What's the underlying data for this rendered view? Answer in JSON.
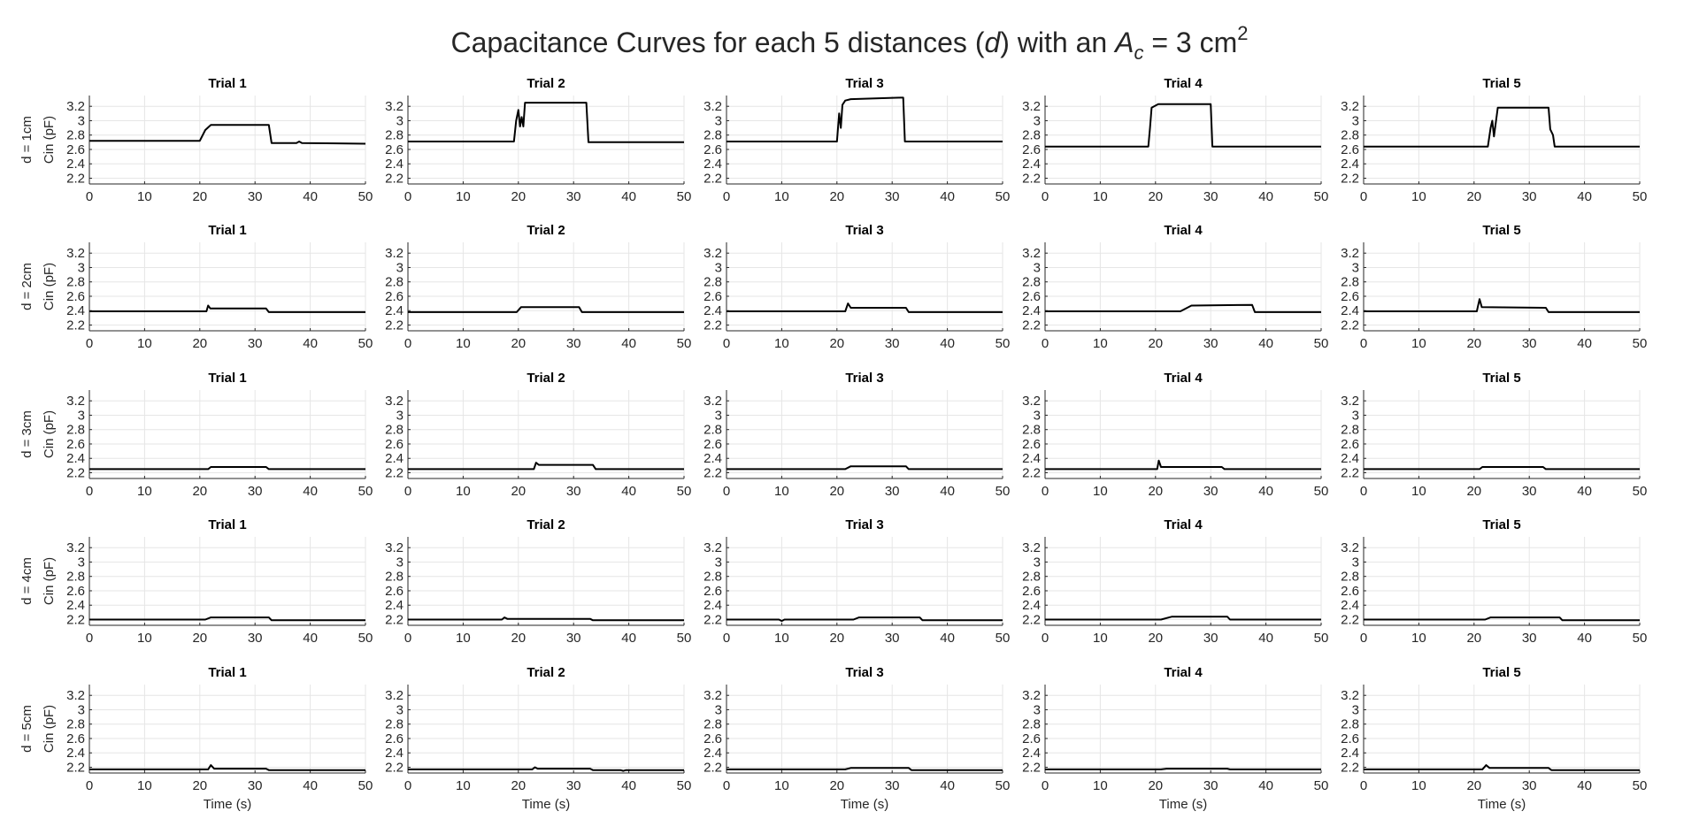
{
  "figure": {
    "title_main": "Capacitance Curves for each 5 distances (",
    "title_d": "d",
    "title_mid": ") with an ",
    "title_A": "A",
    "title_sub": "c",
    "title_eq": " = 3 cm",
    "title_sup": "2"
  },
  "colors": {
    "line": "#000000",
    "grid": "#e6e6e6",
    "axis": "#262626",
    "background": "#ffffff"
  },
  "chart_data": {
    "type": "line",
    "layout": {
      "rows": 5,
      "cols": 5
    },
    "xlim": [
      0,
      50
    ],
    "ylim": [
      2.12,
      3.35
    ],
    "x_ticks": [
      0,
      10,
      20,
      30,
      40,
      50
    ],
    "x_tick_labels": [
      "0",
      "10",
      "20",
      "30",
      "40",
      "50"
    ],
    "y_ticks": [
      2.2,
      2.4,
      2.6,
      2.8,
      3,
      3.2
    ],
    "y_tick_labels": [
      "2.2",
      "2.4",
      "2.6",
      "2.8",
      "3",
      "3.2"
    ],
    "xlabel": "Time (s)",
    "ylabel": "Cin (pF)",
    "grid": true,
    "col_titles": [
      "Trial 1",
      "Trial 2",
      "Trial 3",
      "Trial 4",
      "Trial 5"
    ],
    "row_labels": [
      "d = 1cm",
      "d = 2cm",
      "d = 3cm",
      "d = 4cm",
      "d = 5cm"
    ],
    "series": [
      [
        {
          "x": [
            0,
            20,
            21,
            22,
            32.5,
            33,
            37.5,
            38,
            38.5,
            50
          ],
          "y": [
            2.72,
            2.72,
            2.87,
            2.94,
            2.94,
            2.69,
            2.69,
            2.71,
            2.69,
            2.68
          ]
        },
        {
          "x": [
            0,
            19.2,
            19.6,
            20.0,
            20.3,
            20.6,
            20.9,
            21.2,
            32.3,
            32.7,
            50
          ],
          "y": [
            2.71,
            2.71,
            3.0,
            3.15,
            2.92,
            3.05,
            2.92,
            3.25,
            3.25,
            2.7,
            2.7
          ]
        },
        {
          "x": [
            0,
            20.0,
            20.4,
            20.7,
            21.0,
            21.5,
            22.5,
            31.5,
            32.0,
            32.3,
            50
          ],
          "y": [
            2.71,
            2.71,
            3.1,
            2.9,
            3.22,
            3.28,
            3.3,
            3.32,
            3.32,
            2.71,
            2.71
          ]
        },
        {
          "x": [
            0,
            18.7,
            19.0,
            19.3,
            20.5,
            30.0,
            30.3,
            50
          ],
          "y": [
            2.64,
            2.64,
            2.9,
            3.18,
            3.23,
            3.23,
            2.64,
            2.64
          ]
        },
        {
          "x": [
            0,
            22.5,
            23.0,
            23.3,
            23.6,
            24.3,
            33.5,
            33.8,
            34.3,
            34.6,
            50
          ],
          "y": [
            2.64,
            2.64,
            2.9,
            3.0,
            2.78,
            3.18,
            3.18,
            2.88,
            2.8,
            2.64,
            2.64
          ]
        }
      ],
      [
        {
          "x": [
            0,
            21.2,
            21.5,
            21.9,
            32.0,
            32.5,
            50
          ],
          "y": [
            2.39,
            2.39,
            2.47,
            2.43,
            2.43,
            2.38,
            2.38
          ]
        },
        {
          "x": [
            0,
            19.7,
            20.5,
            31.0,
            31.5,
            50
          ],
          "y": [
            2.38,
            2.38,
            2.45,
            2.45,
            2.38,
            2.38
          ]
        },
        {
          "x": [
            0,
            21.5,
            22.0,
            22.5,
            32.5,
            33.0,
            50
          ],
          "y": [
            2.39,
            2.39,
            2.5,
            2.44,
            2.44,
            2.38,
            2.38
          ]
        },
        {
          "x": [
            0,
            24.5,
            26.5,
            37.5,
            38.0,
            50
          ],
          "y": [
            2.39,
            2.39,
            2.47,
            2.48,
            2.38,
            2.38
          ]
        },
        {
          "x": [
            0,
            20.5,
            21.0,
            21.4,
            33.0,
            33.5,
            50
          ],
          "y": [
            2.39,
            2.39,
            2.56,
            2.45,
            2.44,
            2.38,
            2.38
          ]
        }
      ],
      [
        {
          "x": [
            0,
            21.5,
            22.0,
            32.0,
            32.5,
            50
          ],
          "y": [
            2.25,
            2.25,
            2.28,
            2.28,
            2.25,
            2.25
          ]
        },
        {
          "x": [
            0,
            22.8,
            23.2,
            23.7,
            33.5,
            34.0,
            50
          ],
          "y": [
            2.25,
            2.25,
            2.34,
            2.31,
            2.31,
            2.25,
            2.25
          ]
        },
        {
          "x": [
            0,
            21.5,
            22.5,
            32.5,
            33.0,
            50
          ],
          "y": [
            2.25,
            2.25,
            2.29,
            2.29,
            2.25,
            2.25
          ]
        },
        {
          "x": [
            0,
            20.3,
            20.6,
            21.0,
            32.0,
            32.5,
            50
          ],
          "y": [
            2.25,
            2.25,
            2.37,
            2.28,
            2.28,
            2.25,
            2.25
          ]
        },
        {
          "x": [
            0,
            21.0,
            21.5,
            32.5,
            33.0,
            50
          ],
          "y": [
            2.25,
            2.25,
            2.28,
            2.28,
            2.25,
            2.25
          ]
        }
      ],
      [
        {
          "x": [
            0,
            21.0,
            22.0,
            32.5,
            33.0,
            50
          ],
          "y": [
            2.2,
            2.2,
            2.23,
            2.23,
            2.19,
            2.19
          ]
        },
        {
          "x": [
            0,
            17.0,
            17.5,
            18.0,
            33.0,
            33.5,
            50
          ],
          "y": [
            2.2,
            2.2,
            2.23,
            2.21,
            2.21,
            2.19,
            2.19
          ]
        },
        {
          "x": [
            0,
            9.5,
            10,
            10.5,
            23.0,
            24.0,
            35.0,
            35.5,
            50
          ],
          "y": [
            2.2,
            2.2,
            2.18,
            2.2,
            2.2,
            2.23,
            2.23,
            2.19,
            2.19
          ]
        },
        {
          "x": [
            0,
            21.0,
            23.0,
            33.0,
            33.5,
            50
          ],
          "y": [
            2.2,
            2.2,
            2.24,
            2.24,
            2.2,
            2.2
          ]
        },
        {
          "x": [
            0,
            22.0,
            23.0,
            35.5,
            36.0,
            50
          ],
          "y": [
            2.2,
            2.2,
            2.23,
            2.23,
            2.19,
            2.19
          ]
        }
      ],
      [
        {
          "x": [
            0,
            21.5,
            22.0,
            22.6,
            32.0,
            32.5,
            50
          ],
          "y": [
            2.17,
            2.17,
            2.23,
            2.18,
            2.18,
            2.16,
            2.16
          ]
        },
        {
          "x": [
            0,
            22.5,
            23.0,
            23.5,
            33.0,
            33.5,
            38.5,
            39,
            39.5,
            50
          ],
          "y": [
            2.17,
            2.17,
            2.2,
            2.18,
            2.18,
            2.16,
            2.16,
            2.15,
            2.16,
            2.16
          ]
        },
        {
          "x": [
            0,
            21.5,
            22.5,
            33.0,
            33.5,
            50
          ],
          "y": [
            2.17,
            2.17,
            2.19,
            2.19,
            2.16,
            2.16
          ]
        },
        {
          "x": [
            0,
            21.0,
            22.0,
            33.0,
            33.5,
            50
          ],
          "y": [
            2.17,
            2.17,
            2.18,
            2.18,
            2.17,
            2.17
          ]
        },
        {
          "x": [
            0,
            21.5,
            22.2,
            22.8,
            33.5,
            34.0,
            50
          ],
          "y": [
            2.17,
            2.17,
            2.23,
            2.19,
            2.19,
            2.16,
            2.16
          ]
        }
      ]
    ]
  }
}
